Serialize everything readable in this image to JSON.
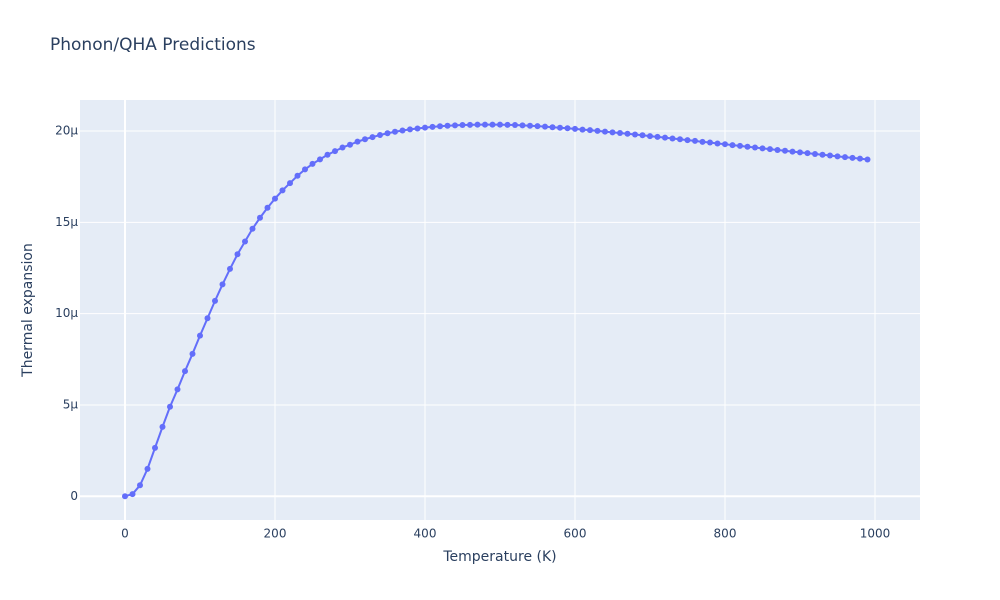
{
  "chart_data": {
    "type": "line",
    "title": "Phonon/QHA Predictions",
    "xlabel": "Temperature (K)",
    "ylabel": "Thermal expansion",
    "xlim": [
      -60,
      1060
    ],
    "ylim": [
      -1.3e-06,
      2.17e-05
    ],
    "x_ticks": [
      0,
      200,
      400,
      600,
      800,
      1000
    ],
    "x_tick_labels": [
      "0",
      "200",
      "400",
      "600",
      "800",
      "1000"
    ],
    "y_ticks": [
      0,
      5e-06,
      1e-05,
      1.5e-05,
      2e-05
    ],
    "y_tick_labels": [
      "0",
      "5μ",
      "10μ",
      "15μ",
      "20μ"
    ],
    "grid": true,
    "colors": {
      "plot_background": "#e5ecf6",
      "grid": "#ffffff",
      "series": "#636efa",
      "text": "#2a3f5f"
    },
    "series": [
      {
        "mode": "lines+markers",
        "x": [
          0,
          10,
          20,
          30,
          40,
          50,
          60,
          70,
          80,
          90,
          100,
          110,
          120,
          130,
          140,
          150,
          160,
          170,
          180,
          190,
          200,
          210,
          220,
          230,
          240,
          250,
          260,
          270,
          280,
          290,
          300,
          310,
          320,
          330,
          340,
          350,
          360,
          370,
          380,
          390,
          400,
          410,
          420,
          430,
          440,
          450,
          460,
          470,
          480,
          490,
          500,
          510,
          520,
          530,
          540,
          550,
          560,
          570,
          580,
          590,
          600,
          610,
          620,
          630,
          640,
          650,
          660,
          670,
          680,
          690,
          700,
          710,
          720,
          730,
          740,
          750,
          760,
          770,
          780,
          790,
          800,
          810,
          820,
          830,
          840,
          850,
          860,
          870,
          880,
          890,
          900,
          910,
          920,
          930,
          940,
          950,
          960,
          970,
          980,
          990
        ],
        "y": [
          0,
          1.2e-07,
          6e-07,
          1.5e-06,
          2.65e-06,
          3.8e-06,
          4.9e-06,
          5.85e-06,
          6.85e-06,
          7.8e-06,
          8.8e-06,
          9.75e-06,
          1.07e-05,
          1.16e-05,
          1.245e-05,
          1.325e-05,
          1.395e-05,
          1.465e-05,
          1.525e-05,
          1.58e-05,
          1.63e-05,
          1.675e-05,
          1.715e-05,
          1.755e-05,
          1.79e-05,
          1.82e-05,
          1.845e-05,
          1.87e-05,
          1.89e-05,
          1.91e-05,
          1.925e-05,
          1.942e-05,
          1.955e-05,
          1.967e-05,
          1.978e-05,
          1.988e-05,
          1.996e-05,
          2.003e-05,
          2.009e-05,
          2.014e-05,
          2.019e-05,
          2.023e-05,
          2.026e-05,
          2.029e-05,
          2.031e-05,
          2.033e-05,
          2.034e-05,
          2.035e-05,
          2.035e-05,
          2.035e-05,
          2.035e-05,
          2.034e-05,
          2.033e-05,
          2.031e-05,
          2.029e-05,
          2.027e-05,
          2.024e-05,
          2.021e-05,
          2.018e-05,
          2.015e-05,
          2.012e-05,
          2.008e-05,
          2.005e-05,
          2.001e-05,
          1.997e-05,
          1.993e-05,
          1.989e-05,
          1.985e-05,
          1.981e-05,
          1.977e-05,
          1.972e-05,
          1.968e-05,
          1.964e-05,
          1.959e-05,
          1.955e-05,
          1.95e-05,
          1.946e-05,
          1.941e-05,
          1.937e-05,
          1.932e-05,
          1.928e-05,
          1.923e-05,
          1.919e-05,
          1.914e-05,
          1.91e-05,
          1.905e-05,
          1.901e-05,
          1.896e-05,
          1.892e-05,
          1.887e-05,
          1.883e-05,
          1.879e-05,
          1.874e-05,
          1.87e-05,
          1.866e-05,
          1.861e-05,
          1.857e-05,
          1.853e-05,
          1.849e-05,
          1.844e-05
        ]
      }
    ]
  }
}
